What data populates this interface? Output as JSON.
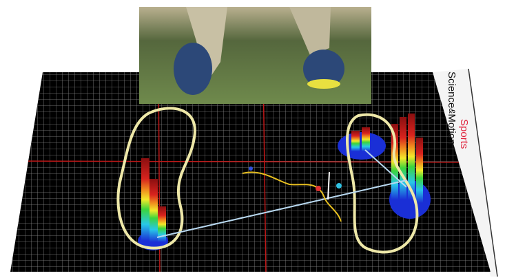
{
  "logo": {
    "brand": "Science",
    "ampersand": "&",
    "brand2": "Motion",
    "product": "Sports"
  }
}
